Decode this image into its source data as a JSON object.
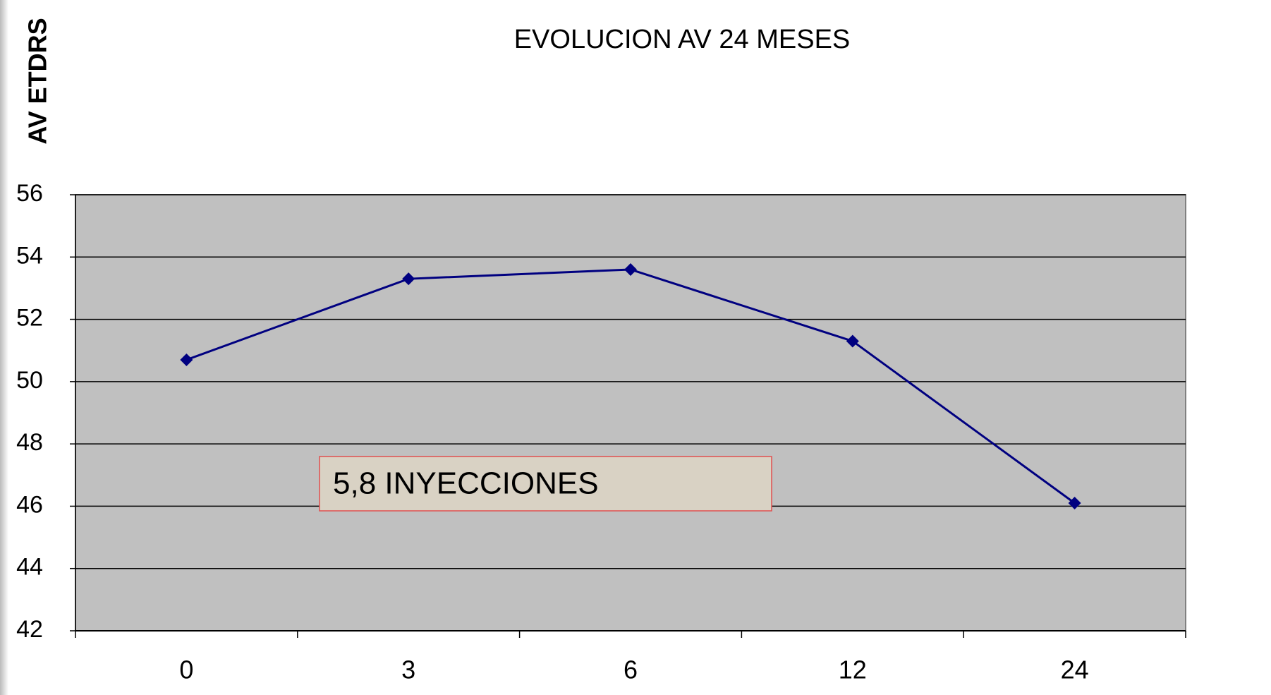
{
  "chart_data": {
    "type": "line",
    "title": "EVOLUCION AV  24 MESES",
    "y_label": "AV  ETDRS",
    "annotation": "5,8 INYECCIONES",
    "categories": [
      "0",
      "3",
      "6",
      "12",
      "24"
    ],
    "series": [
      {
        "name": "AV",
        "color": "#000080",
        "values": [
          50.7,
          53.3,
          53.6,
          51.3,
          46.1
        ]
      }
    ],
    "ylim": [
      42,
      56
    ],
    "yticks": [
      42,
      44,
      46,
      48,
      50,
      52,
      54,
      56
    ],
    "grid": true
  }
}
